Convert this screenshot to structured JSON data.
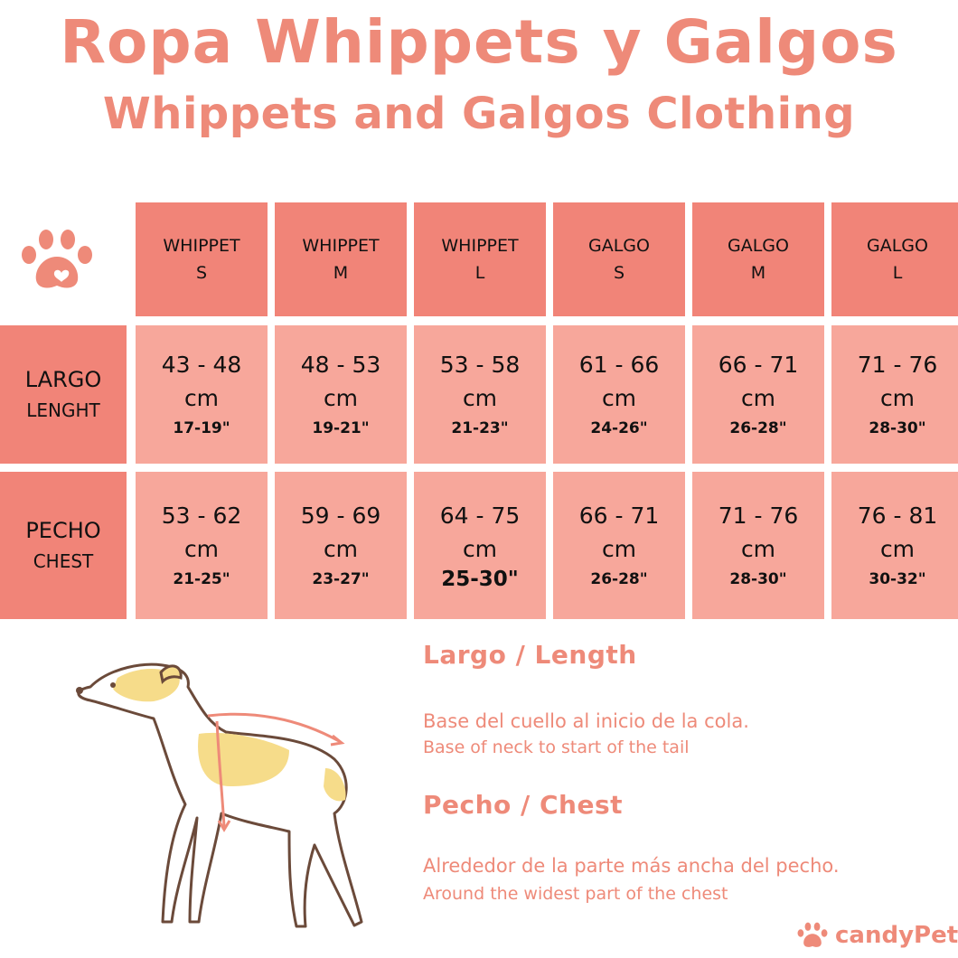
{
  "title_es": "Ropa Whippets y Galgos",
  "title_en": "Whippets and Galgos Clothing",
  "table": {
    "columns": [
      {
        "breed": "WHIPPET",
        "size": "S"
      },
      {
        "breed": "WHIPPET",
        "size": "M"
      },
      {
        "breed": "WHIPPET",
        "size": "L"
      },
      {
        "breed": "GALGO",
        "size": "S"
      },
      {
        "breed": "GALGO",
        "size": "M"
      },
      {
        "breed": "GALGO",
        "size": "L"
      }
    ],
    "rows": [
      {
        "label_es": "LARGO",
        "label_en": "LENGHT",
        "cells": [
          {
            "range": "43 - 48",
            "unit": "cm",
            "inches": "17-19\""
          },
          {
            "range": "48 - 53",
            "unit": "cm",
            "inches": "19-21\""
          },
          {
            "range": "53 - 58",
            "unit": "cm",
            "inches": "21-23\""
          },
          {
            "range": "61 - 66",
            "unit": "cm",
            "inches": "24-26\""
          },
          {
            "range": "66 - 71",
            "unit": "cm",
            "inches": "26-28\""
          },
          {
            "range": "71 - 76",
            "unit": "cm",
            "inches": "28-30\""
          }
        ]
      },
      {
        "label_es": "PECHO",
        "label_en": "CHEST",
        "cells": [
          {
            "range": "53 - 62",
            "unit": "cm",
            "inches": "21-25\""
          },
          {
            "range": "59 - 69",
            "unit": "cm",
            "inches": "23-27\""
          },
          {
            "range": "64 - 75",
            "unit": "cm",
            "inches": "25-30\""
          },
          {
            "range": "66 - 71",
            "unit": "cm",
            "inches": "26-28\""
          },
          {
            "range": "71 - 76",
            "unit": "cm",
            "inches": "28-30\""
          },
          {
            "range": "76 - 81",
            "unit": "cm",
            "inches": "30-32\""
          }
        ]
      }
    ]
  },
  "length": {
    "title": "Largo / Length",
    "desc_es": "Base del cuello al inicio de la cola.",
    "desc_en": "Base of neck to start of the tail"
  },
  "chest": {
    "title": "Pecho / Chest",
    "desc_es": "Alrededor de la parte más ancha del pecho.",
    "desc_en": "Around the widest part of the chest"
  },
  "brand": "candyPet",
  "colors": {
    "accent": "#ee8a79",
    "header": "#f18478",
    "cell": "#f7a79b",
    "dog_patch": "#f6dc8a"
  },
  "icons": [
    "paw-icon",
    "dog-illustration",
    "brand-paw-icon"
  ]
}
